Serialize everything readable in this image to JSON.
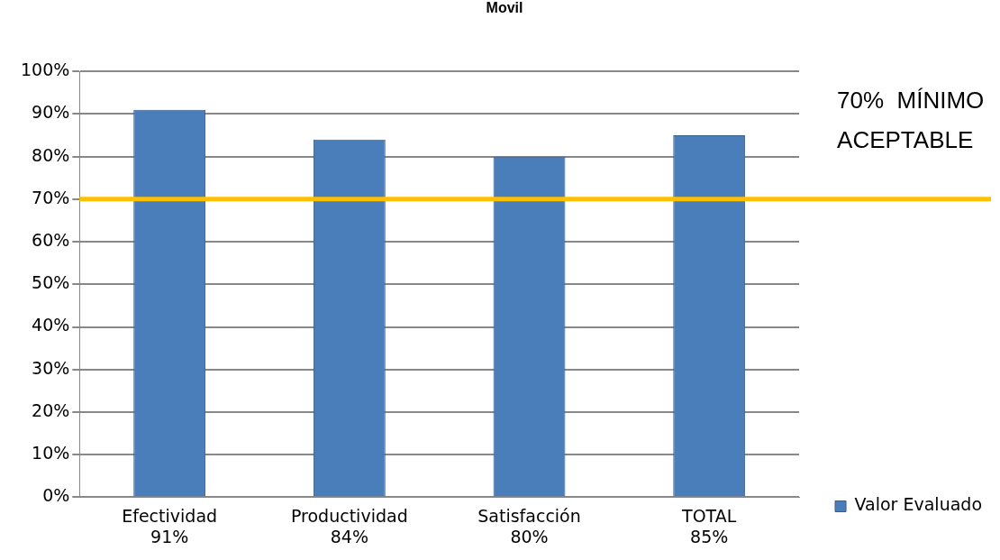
{
  "chart_data": {
    "type": "bar",
    "title": "Movil",
    "categories": [
      "Efectividad\n91%",
      "Productividad\n84%",
      "Satisfacción\n80%",
      "TOTAL\n85%"
    ],
    "series": [
      {
        "name": "Valor Evaluado",
        "color": "#4a7ebb",
        "values": [
          91,
          84,
          80,
          85
        ]
      }
    ],
    "ylim": [
      0,
      100
    ],
    "yticks": [
      {
        "value": 0,
        "label": "0%"
      },
      {
        "value": 10,
        "label": "10%"
      },
      {
        "value": 20,
        "label": "20%"
      },
      {
        "value": 30,
        "label": "30%"
      },
      {
        "value": 40,
        "label": "40%"
      },
      {
        "value": 50,
        "label": "50%"
      },
      {
        "value": 60,
        "label": "60%"
      },
      {
        "value": 70,
        "label": "70%"
      },
      {
        "value": 80,
        "label": "80%"
      },
      {
        "value": 90,
        "label": "90%"
      },
      {
        "value": 100,
        "label": "100%"
      }
    ],
    "ref_lines": [
      {
        "axis": "y",
        "value": 70,
        "label": "70%  MÍNIMO\nACEPTABLE",
        "color": "#ffc000"
      }
    ],
    "grid": true,
    "legend": "right"
  }
}
